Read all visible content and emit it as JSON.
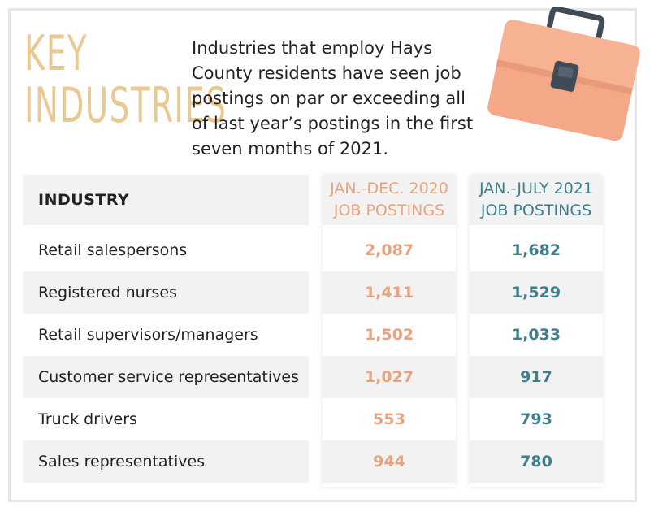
{
  "title_lines": [
    "KEY",
    "INDUSTRIES"
  ],
  "intro": "Industries that employ Hays County residents have seen job postings on par or exceeding all of last year’s postings in the first seven months of 2021.",
  "icon": "briefcase-icon",
  "colors": {
    "title": "#e9c892",
    "col_2020": "#e9a37f",
    "col_2021": "#3f7f8c",
    "briefcase_body": "#f4a888",
    "briefcase_handle": "#3f4b56"
  },
  "chart_data": {
    "type": "table",
    "columns": [
      {
        "key": "industry",
        "header": [
          "INDUSTRY"
        ]
      },
      {
        "key": "jan_dec_2020",
        "header": [
          "JAN.-DEC. 2020",
          "JOB POSTINGS"
        ]
      },
      {
        "key": "jan_july_2021",
        "header": [
          "JAN.-JULY 2021",
          "JOB POSTINGS"
        ]
      }
    ],
    "rows": [
      {
        "industry": "Retail salespersons",
        "jan_dec_2020": "2,087",
        "jan_july_2021": "1,682"
      },
      {
        "industry": "Registered nurses",
        "jan_dec_2020": "1,411",
        "jan_july_2021": "1,529"
      },
      {
        "industry": "Retail supervisors/managers",
        "jan_dec_2020": "1,502",
        "jan_july_2021": "1,033"
      },
      {
        "industry": "Customer service representatives",
        "jan_dec_2020": "1,027",
        "jan_july_2021": "917"
      },
      {
        "industry": "Truck drivers",
        "jan_dec_2020": "553",
        "jan_july_2021": "793"
      },
      {
        "industry": "Sales representatives",
        "jan_dec_2020": "944",
        "jan_july_2021": "780"
      }
    ]
  }
}
